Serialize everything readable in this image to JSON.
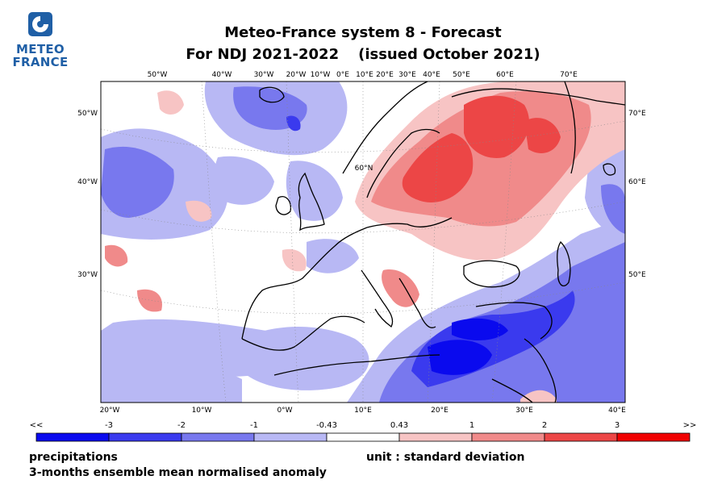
{
  "logo": {
    "line1": "METEO",
    "line2": "FRANCE",
    "mark_icon": "meteo-france-logo-icon",
    "brand_color": "#1f5fa6"
  },
  "title": {
    "line1": "Meteo-France system 8  -  Forecast",
    "line2_main": "For NDJ 2021-2022",
    "line2_issued": "(issued October 2021)"
  },
  "map": {
    "top_lon_labels": [
      "50°W",
      "40°W",
      "30°W",
      "20°W",
      "10°W",
      "0°E",
      "10°E",
      "20°E",
      "30°E",
      "40°E",
      "50°E",
      "60°E",
      "70°E"
    ],
    "bottom_lon_labels": [
      "20°W",
      "10°W",
      "0°W",
      "10°E",
      "20°E",
      "30°E",
      "40°E"
    ],
    "left_lat_labels": [
      "50°W",
      "40°W",
      "30°W"
    ],
    "right_lat_labels": [
      "70°E",
      "60°E",
      "50°E"
    ],
    "inner_label": "60°N"
  },
  "colorbar": {
    "labels": [
      "<<",
      "-3",
      "-2",
      "-1",
      "-0.43",
      "0.43",
      "1",
      "2",
      "3",
      ">>"
    ],
    "colors": [
      "#0a0aee",
      "#3a3aee",
      "#7878ee",
      "#b8b8f4",
      "#ffffff",
      "#f7c4c4",
      "#f08a8a",
      "#ec4646",
      "#f00000"
    ]
  },
  "footer": {
    "variable": "precipitations",
    "description": "3-months ensemble mean normalised anomaly",
    "unit": "unit : standard deviation"
  }
}
